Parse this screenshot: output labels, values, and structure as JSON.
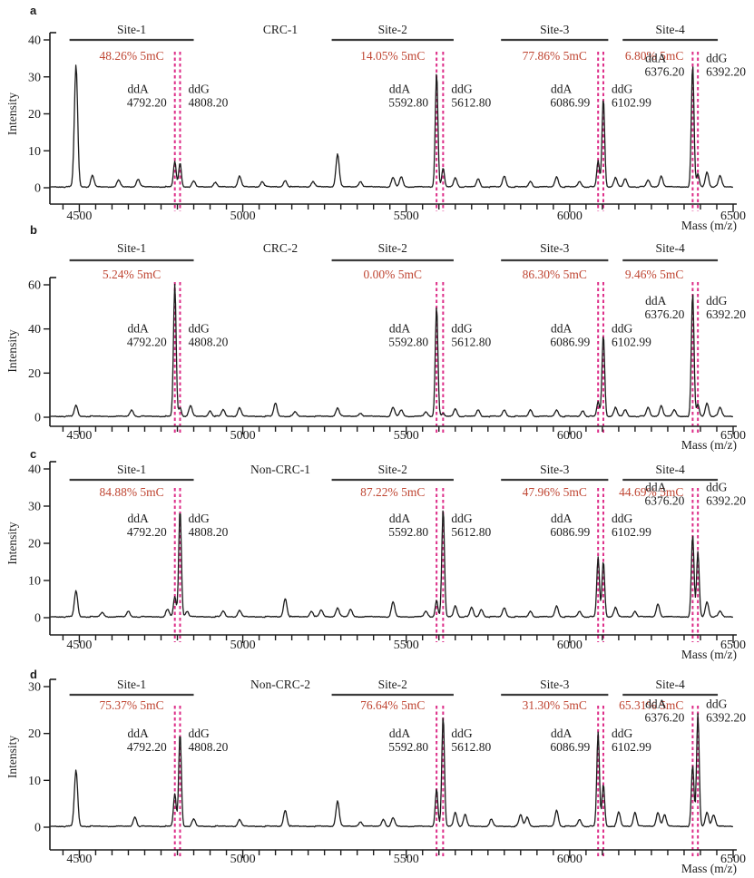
{
  "figure": {
    "xlabel": "Mass (m/z)",
    "ylabel": "Intensity",
    "colors": {
      "trace": "#1c1c1c",
      "axis": "#1c1c1c",
      "text": "#1c1c1c",
      "site_bar": "#3c3c3c",
      "percent_text": "#bf4532",
      "marker_dash": "#dd2d88"
    }
  },
  "chart_data": [
    {
      "type": "line",
      "panel_label": "a",
      "sample": "CRC-1",
      "xlabel": "Mass (m/z)",
      "ylabel": "Intensity",
      "xlim": [
        4410,
        6500
      ],
      "ylim": [
        0,
        40
      ],
      "yticks": [
        0,
        10,
        20,
        30,
        40
      ],
      "xticks": [
        4500,
        5000,
        5500,
        6000,
        6500
      ],
      "xtick_minor_step": 50,
      "grid": false,
      "sites": [
        {
          "name": "Site-1",
          "percent_5mC": "48.26% 5mC",
          "bar_range": [
            4470,
            4850
          ],
          "ddA": {
            "label": "ddA",
            "mass": 4792.2,
            "mass_label": "4792.20",
            "intensity": 7.0
          },
          "ddG": {
            "label": "ddG",
            "mass": 4808.2,
            "mass_label": "4808.20",
            "intensity": 6.5
          }
        },
        {
          "name": "Site-2",
          "percent_5mC": "14.05% 5mC",
          "bar_range": [
            5272,
            5645
          ],
          "ddA": {
            "label": "ddA",
            "mass": 5592.8,
            "mass_label": "5592.80",
            "intensity": 31.0
          },
          "ddG": {
            "label": "ddG",
            "mass": 5612.8,
            "mass_label": "5612.80",
            "intensity": 5.0
          }
        },
        {
          "name": "Site-3",
          "percent_5mC": "77.86% 5mC",
          "bar_range": [
            5790,
            6118
          ],
          "ddA": {
            "label": "ddA",
            "mass": 6086.99,
            "mass_label": "6086.99",
            "intensity": 7.0
          },
          "ddG": {
            "label": "ddG",
            "mass": 6102.99,
            "mass_label": "6102.99",
            "intensity": 24.0
          }
        },
        {
          "name": "Site-4",
          "percent_5mC": "6.80% 5mC",
          "bar_range": [
            6162,
            6453
          ],
          "ddA": {
            "label": "ddA",
            "mass": 6376.2,
            "mass_label": "6376.20",
            "intensity": 33.0
          },
          "ddG": {
            "label": "ddG",
            "mass": 6392.2,
            "mass_label": "6392.20",
            "intensity": 3.5
          }
        }
      ],
      "noise_peaks": [
        [
          4490,
          33
        ],
        [
          4540,
          3
        ],
        [
          4620,
          1.8
        ],
        [
          4680,
          2.2
        ],
        [
          4850,
          1.5
        ],
        [
          4915,
          1.2
        ],
        [
          4990,
          3
        ],
        [
          5060,
          1.5
        ],
        [
          5130,
          1.8
        ],
        [
          5215,
          1.5
        ],
        [
          5290,
          9
        ],
        [
          5360,
          1.5
        ],
        [
          5460,
          2.5
        ],
        [
          5485,
          2.8
        ],
        [
          5650,
          2.5
        ],
        [
          5720,
          2.2
        ],
        [
          5800,
          3
        ],
        [
          5880,
          1.5
        ],
        [
          5960,
          2.8
        ],
        [
          6030,
          1.5
        ],
        [
          6140,
          2.5
        ],
        [
          6170,
          2.2
        ],
        [
          6240,
          1.8
        ],
        [
          6280,
          3
        ],
        [
          6420,
          4
        ],
        [
          6460,
          3
        ]
      ]
    },
    {
      "type": "line",
      "panel_label": "b",
      "sample": "CRC-2",
      "xlabel": "Mass (m/z)",
      "ylabel": "Intensity",
      "xlim": [
        4410,
        6500
      ],
      "ylim": [
        0,
        60
      ],
      "yticks": [
        0,
        20,
        40,
        60
      ],
      "xticks": [
        4500,
        5000,
        5500,
        6000,
        6500
      ],
      "xtick_minor_step": 50,
      "grid": false,
      "sites": [
        {
          "name": "Site-1",
          "percent_5mC": "5.24% 5mC",
          "bar_range": [
            4470,
            4850
          ],
          "ddA": {
            "label": "ddA",
            "mass": 4792.2,
            "mass_label": "4792.20",
            "intensity": 60.0
          },
          "ddG": {
            "label": "ddG",
            "mass": 4808.2,
            "mass_label": "4808.20",
            "intensity": 4.0
          }
        },
        {
          "name": "Site-2",
          "percent_5mC": "0.00% 5mC",
          "bar_range": [
            5272,
            5645
          ],
          "ddA": {
            "label": "ddA",
            "mass": 5592.8,
            "mass_label": "5592.80",
            "intensity": 50.0
          },
          "ddG": {
            "label": "ddG",
            "mass": 5612.8,
            "mass_label": "5612.80",
            "intensity": 1.2
          }
        },
        {
          "name": "Site-3",
          "percent_5mC": "86.30% 5mC",
          "bar_range": [
            5790,
            6118
          ],
          "ddA": {
            "label": "ddA",
            "mass": 6086.99,
            "mass_label": "6086.99",
            "intensity": 6.5
          },
          "ddG": {
            "label": "ddG",
            "mass": 6102.99,
            "mass_label": "6102.99",
            "intensity": 37.0
          }
        },
        {
          "name": "Site-4",
          "percent_5mC": "9.46% 5mC",
          "bar_range": [
            6162,
            6453
          ],
          "ddA": {
            "label": "ddA",
            "mass": 6376.2,
            "mass_label": "6376.20",
            "intensity": 56.0
          },
          "ddG": {
            "label": "ddG",
            "mass": 6392.2,
            "mass_label": "6392.20",
            "intensity": 5.5
          }
        }
      ],
      "noise_peaks": [
        [
          4490,
          5
        ],
        [
          4660,
          3
        ],
        [
          4840,
          5
        ],
        [
          4900,
          2.5
        ],
        [
          4940,
          3
        ],
        [
          4990,
          4
        ],
        [
          5100,
          6
        ],
        [
          5160,
          2
        ],
        [
          5290,
          4
        ],
        [
          5360,
          1.5
        ],
        [
          5460,
          4
        ],
        [
          5485,
          3
        ],
        [
          5560,
          2
        ],
        [
          5650,
          3.5
        ],
        [
          5720,
          3
        ],
        [
          5800,
          3
        ],
        [
          5880,
          3
        ],
        [
          5960,
          3
        ],
        [
          6040,
          2.5
        ],
        [
          6140,
          4
        ],
        [
          6170,
          3
        ],
        [
          6240,
          4
        ],
        [
          6280,
          5
        ],
        [
          6320,
          3
        ],
        [
          6420,
          6
        ],
        [
          6460,
          4
        ]
      ]
    },
    {
      "type": "line",
      "panel_label": "c",
      "sample": "Non-CRC-1",
      "xlabel": "Mass (m/z)",
      "ylabel": "Intensity",
      "xlim": [
        4410,
        6500
      ],
      "ylim": [
        0,
        40
      ],
      "yticks": [
        0,
        10,
        20,
        30,
        40
      ],
      "xticks": [
        4500,
        5000,
        5500,
        6000,
        6500
      ],
      "xtick_minor_step": 50,
      "grid": false,
      "sites": [
        {
          "name": "Site-1",
          "percent_5mC": "84.88% 5mC",
          "bar_range": [
            4470,
            4850
          ],
          "ddA": {
            "label": "ddA",
            "mass": 4792.2,
            "mass_label": "4792.20",
            "intensity": 5.5
          },
          "ddG": {
            "label": "ddG",
            "mass": 4808.2,
            "mass_label": "4808.20",
            "intensity": 29.0
          }
        },
        {
          "name": "Site-2",
          "percent_5mC": "87.22% 5mC",
          "bar_range": [
            5272,
            5645
          ],
          "ddA": {
            "label": "ddA",
            "mass": 5592.8,
            "mass_label": "5592.80",
            "intensity": 4.5
          },
          "ddG": {
            "label": "ddG",
            "mass": 5612.8,
            "mass_label": "5612.80",
            "intensity": 29.0
          }
        },
        {
          "name": "Site-3",
          "percent_5mC": "47.96% 5mC",
          "bar_range": [
            5790,
            6118
          ],
          "ddA": {
            "label": "ddA",
            "mass": 6086.99,
            "mass_label": "6086.99",
            "intensity": 16.0
          },
          "ddG": {
            "label": "ddG",
            "mass": 6102.99,
            "mass_label": "6102.99",
            "intensity": 15.0
          }
        },
        {
          "name": "Site-4",
          "percent_5mC": "44.69% 5mC",
          "bar_range": [
            6162,
            6453
          ],
          "ddA": {
            "label": "ddA",
            "mass": 6376.2,
            "mass_label": "6376.20",
            "intensity": 22.0
          },
          "ddG": {
            "label": "ddG",
            "mass": 6392.2,
            "mass_label": "6392.20",
            "intensity": 17.5
          }
        }
      ],
      "noise_peaks": [
        [
          4490,
          7
        ],
        [
          4570,
          1.2
        ],
        [
          4650,
          1.5
        ],
        [
          4770,
          2
        ],
        [
          4830,
          1.5
        ],
        [
          4940,
          1.5
        ],
        [
          4990,
          1.8
        ],
        [
          5130,
          5
        ],
        [
          5210,
          1.5
        ],
        [
          5240,
          1.8
        ],
        [
          5290,
          2.5
        ],
        [
          5330,
          2
        ],
        [
          5460,
          4
        ],
        [
          5560,
          1.5
        ],
        [
          5650,
          3
        ],
        [
          5700,
          2.5
        ],
        [
          5730,
          2
        ],
        [
          5800,
          2.5
        ],
        [
          5880,
          1.5
        ],
        [
          5960,
          3
        ],
        [
          6030,
          1.5
        ],
        [
          6140,
          2.5
        ],
        [
          6200,
          1.5
        ],
        [
          6270,
          3.5
        ],
        [
          6420,
          4
        ],
        [
          6460,
          1.5
        ]
      ]
    },
    {
      "type": "line",
      "panel_label": "d",
      "sample": "Non-CRC-2",
      "xlabel": "Mass (m/z)",
      "ylabel": "Intensity",
      "xlim": [
        4410,
        6500
      ],
      "ylim": [
        0,
        30
      ],
      "yticks": [
        0,
        10,
        20,
        30
      ],
      "xticks": [
        4500,
        5000,
        5500,
        6000,
        6500
      ],
      "xtick_minor_step": 50,
      "grid": false,
      "sites": [
        {
          "name": "Site-1",
          "percent_5mC": "75.37% 5mC",
          "bar_range": [
            4470,
            4850
          ],
          "ddA": {
            "label": "ddA",
            "mass": 4792.2,
            "mass_label": "4792.20",
            "intensity": 7.0
          },
          "ddG": {
            "label": "ddG",
            "mass": 4808.2,
            "mass_label": "4808.20",
            "intensity": 20.0
          }
        },
        {
          "name": "Site-2",
          "percent_5mC": "76.64% 5mC",
          "bar_range": [
            5272,
            5645
          ],
          "ddA": {
            "label": "ddA",
            "mass": 5592.8,
            "mass_label": "5592.80",
            "intensity": 8.0
          },
          "ddG": {
            "label": "ddG",
            "mass": 5612.8,
            "mass_label": "5612.80",
            "intensity": 23.5
          }
        },
        {
          "name": "Site-3",
          "percent_5mC": "31.30% 5mC",
          "bar_range": [
            5790,
            6118
          ],
          "ddA": {
            "label": "ddA",
            "mass": 6086.99,
            "mass_label": "6086.99",
            "intensity": 20.0
          },
          "ddG": {
            "label": "ddG",
            "mass": 6102.99,
            "mass_label": "6102.99",
            "intensity": 9.0
          }
        },
        {
          "name": "Site-4",
          "percent_5mC": "65.31% 5mC",
          "bar_range": [
            6162,
            6453
          ],
          "ddA": {
            "label": "ddA",
            "mass": 6376.2,
            "mass_label": "6376.20",
            "intensity": 13.0
          },
          "ddG": {
            "label": "ddG",
            "mass": 6392.2,
            "mass_label": "6392.20",
            "intensity": 24.0
          }
        }
      ],
      "noise_peaks": [
        [
          4490,
          12
        ],
        [
          4670,
          2
        ],
        [
          4850,
          1.5
        ],
        [
          4990,
          1.5
        ],
        [
          5130,
          3.5
        ],
        [
          5290,
          5.5
        ],
        [
          5360,
          1
        ],
        [
          5430,
          1.5
        ],
        [
          5460,
          1.8
        ],
        [
          5650,
          3
        ],
        [
          5680,
          2.5
        ],
        [
          5760,
          1.5
        ],
        [
          5850,
          2.5
        ],
        [
          5870,
          2
        ],
        [
          5960,
          3.5
        ],
        [
          6030,
          1.5
        ],
        [
          6150,
          3
        ],
        [
          6200,
          3
        ],
        [
          6270,
          3
        ],
        [
          6290,
          2.5
        ],
        [
          6420,
          3
        ],
        [
          6440,
          2.5
        ]
      ]
    }
  ]
}
